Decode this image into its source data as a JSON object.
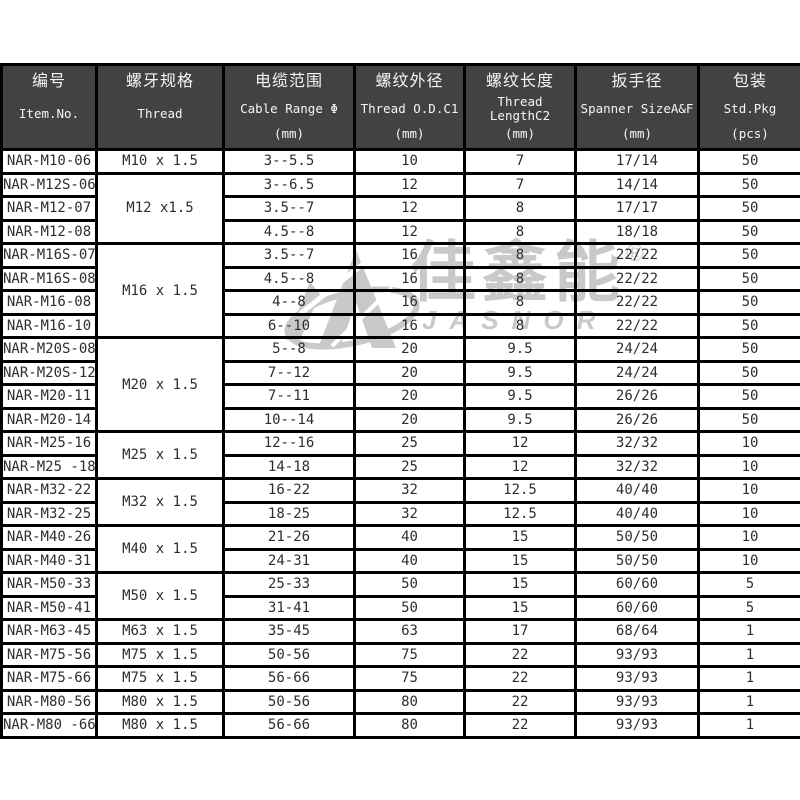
{
  "colors": {
    "header_bg": "#424242",
    "header_text": "#f5f5f5",
    "border": "#000000",
    "cell_text": "#2e2e2e",
    "watermark": "#c9c9c9"
  },
  "watermark": {
    "logo": "jasnor-mountain-logo",
    "zh": "佳鑫能",
    "reg": "®",
    "en": "JASNOR"
  },
  "table": {
    "columns": [
      {
        "zh": "编号",
        "en": "Item.No.",
        "unit": ""
      },
      {
        "zh": "螺牙规格",
        "en": "Thread",
        "unit": ""
      },
      {
        "zh": "电缆范围",
        "en": "Cable Range Φ",
        "unit": "(mm)"
      },
      {
        "zh": "螺纹外径",
        "en": "Thread O.D.C1",
        "unit": "(mm)"
      },
      {
        "zh": "螺纹长度",
        "en": "Thread LengthC2",
        "unit": "(mm)"
      },
      {
        "zh": "扳手径",
        "en": "Spanner SizeA&F",
        "unit": "(mm)"
      },
      {
        "zh": "包装",
        "en": "Std.Pkg",
        "unit": "(pcs)"
      }
    ],
    "rows": [
      {
        "item": "NAR-M10-06",
        "thread": "M10 x 1.5",
        "span": 1,
        "cable": "3--5.5",
        "od": "10",
        "len": "7",
        "spanner": "17/14",
        "pkg": "50"
      },
      {
        "item": "NAR-M12S-06",
        "thread": "M12 x1.5",
        "span": 3,
        "cable": "3--6.5",
        "od": "12",
        "len": "7",
        "spanner": "14/14",
        "pkg": "50"
      },
      {
        "item": "NAR-M12-07",
        "cable": "3.5--7",
        "od": "12",
        "len": "8",
        "spanner": "17/17",
        "pkg": "50"
      },
      {
        "item": "NAR-M12-08",
        "cable": "4.5--8",
        "od": "12",
        "len": "8",
        "spanner": "18/18",
        "pkg": "50"
      },
      {
        "item": "NAR-M16S-07",
        "thread": "M16 x 1.5",
        "span": 4,
        "cable": "3.5--7",
        "od": "16",
        "len": "8",
        "spanner": "22/22",
        "pkg": "50"
      },
      {
        "item": "NAR-M16S-08",
        "cable": "4.5--8",
        "od": "16",
        "len": "8",
        "spanner": "22/22",
        "pkg": "50"
      },
      {
        "item": "NAR-M16-08",
        "cable": "4--8",
        "od": "16",
        "len": "8",
        "spanner": "22/22",
        "pkg": "50"
      },
      {
        "item": "NAR-M16-10",
        "cable": "6--10",
        "od": "16",
        "len": "8",
        "spanner": "22/22",
        "pkg": "50"
      },
      {
        "item": "NAR-M20S-08",
        "thread": "M20 x 1.5",
        "span": 4,
        "cable": "5--8",
        "od": "20",
        "len": "9.5",
        "spanner": "24/24",
        "pkg": "50"
      },
      {
        "item": "NAR-M20S-12",
        "cable": "7--12",
        "od": "20",
        "len": "9.5",
        "spanner": "24/24",
        "pkg": "50"
      },
      {
        "item": "NAR-M20-11",
        "cable": "7--11",
        "od": "20",
        "len": "9.5",
        "spanner": "26/26",
        "pkg": "50"
      },
      {
        "item": "NAR-M20-14",
        "cable": "10--14",
        "od": "20",
        "len": "9.5",
        "spanner": "26/26",
        "pkg": "50"
      },
      {
        "item": "NAR-M25-16",
        "thread": "M25 x 1.5",
        "span": 2,
        "cable": "12--16",
        "od": "25",
        "len": "12",
        "spanner": "32/32",
        "pkg": "10"
      },
      {
        "item": "NAR-M25 -18",
        "cable": "14-18",
        "od": "25",
        "len": "12",
        "spanner": "32/32",
        "pkg": "10"
      },
      {
        "item": "NAR-M32-22",
        "thread": "M32 x 1.5",
        "span": 2,
        "cable": "16-22",
        "od": "32",
        "len": "12.5",
        "spanner": "40/40",
        "pkg": "10"
      },
      {
        "item": "NAR-M32-25",
        "cable": "18-25",
        "od": "32",
        "len": "12.5",
        "spanner": "40/40",
        "pkg": "10"
      },
      {
        "item": "NAR-M40-26",
        "thread": "M40 x 1.5",
        "span": 2,
        "cable": "21-26",
        "od": "40",
        "len": "15",
        "spanner": "50/50",
        "pkg": "10"
      },
      {
        "item": "NAR-M40-31",
        "cable": "24-31",
        "od": "40",
        "len": "15",
        "spanner": "50/50",
        "pkg": "10"
      },
      {
        "item": "NAR-M50-33",
        "thread": "M50 x 1.5",
        "span": 2,
        "cable": "25-33",
        "od": "50",
        "len": "15",
        "spanner": "60/60",
        "pkg": "5"
      },
      {
        "item": "NAR-M50-41",
        "cable": "31-41",
        "od": "50",
        "len": "15",
        "spanner": "60/60",
        "pkg": "5"
      },
      {
        "item": "NAR-M63-45",
        "thread": "M63 x 1.5",
        "span": 1,
        "cable": "35-45",
        "od": "63",
        "len": "17",
        "spanner": "68/64",
        "pkg": "1"
      },
      {
        "item": "NAR-M75-56",
        "thread": "M75 x 1.5",
        "span": 1,
        "cable": "50-56",
        "od": "75",
        "len": "22",
        "spanner": "93/93",
        "pkg": "1"
      },
      {
        "item": "NAR-M75-66",
        "thread": "M75 x 1.5",
        "span": 1,
        "cable": "56-66",
        "od": "75",
        "len": "22",
        "spanner": "93/93",
        "pkg": "1"
      },
      {
        "item": "NAR-M80-56",
        "thread": "M80 x 1.5",
        "span": 1,
        "cable": "50-56",
        "od": "80",
        "len": "22",
        "spanner": "93/93",
        "pkg": "1"
      },
      {
        "item": "NAR-M80 -66",
        "thread": "M80 x 1.5",
        "span": 1,
        "cable": "56-66",
        "od": "80",
        "len": "22",
        "spanner": "93/93",
        "pkg": "1"
      }
    ]
  }
}
